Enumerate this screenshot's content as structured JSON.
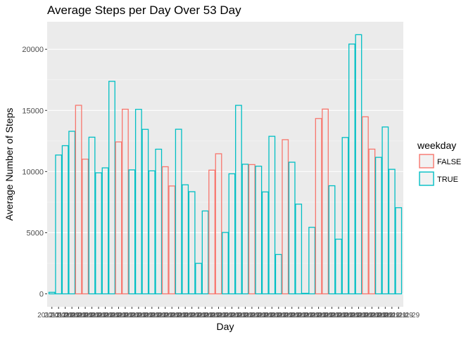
{
  "chart_data": {
    "type": "bar",
    "title": "Average Steps per Day Over 53 Day",
    "xlabel": "Day",
    "ylabel": "Average Number of Steps",
    "ylim": [
      -1060,
      22250
    ],
    "yticks": [
      0,
      5000,
      10000,
      15000,
      20000
    ],
    "ytick_labels": [
      "0",
      "5000",
      "10000",
      "15000",
      "20000"
    ],
    "grid": true,
    "bar_fill": "unfilled",
    "legend": {
      "title": "weekday",
      "placement": "right",
      "entries": [
        {
          "name": "FALSE",
          "color": "#F8766D"
        },
        {
          "name": "TRUE",
          "color": "#00BFC4"
        }
      ]
    },
    "series": [
      {
        "name": "FALSE",
        "color": "#F8766D"
      },
      {
        "name": "TRUE",
        "color": "#00BFC4"
      }
    ],
    "x_tick_labels_overlapping": [
      "201",
      "2012",
      "20121",
      "201210",
      "2012-1",
      "2012-11",
      "2012-11-29"
    ],
    "bars": [
      {
        "group": "TRUE",
        "value": 126
      },
      {
        "group": "TRUE",
        "value": 11352
      },
      {
        "group": "TRUE",
        "value": 12116
      },
      {
        "group": "TRUE",
        "value": 13294
      },
      {
        "group": "FALSE",
        "value": 15420
      },
      {
        "group": "FALSE",
        "value": 11015
      },
      {
        "group": "TRUE",
        "value": 12811
      },
      {
        "group": "TRUE",
        "value": 9900
      },
      {
        "group": "TRUE",
        "value": 10304
      },
      {
        "group": "TRUE",
        "value": 17382
      },
      {
        "group": "FALSE",
        "value": 12426
      },
      {
        "group": "FALSE",
        "value": 15098
      },
      {
        "group": "TRUE",
        "value": 10139
      },
      {
        "group": "TRUE",
        "value": 15084
      },
      {
        "group": "TRUE",
        "value": 13452
      },
      {
        "group": "TRUE",
        "value": 10056
      },
      {
        "group": "TRUE",
        "value": 11829
      },
      {
        "group": "FALSE",
        "value": 10395
      },
      {
        "group": "FALSE",
        "value": 8821
      },
      {
        "group": "TRUE",
        "value": 13460
      },
      {
        "group": "TRUE",
        "value": 8918
      },
      {
        "group": "TRUE",
        "value": 8355
      },
      {
        "group": "TRUE",
        "value": 2492
      },
      {
        "group": "TRUE",
        "value": 6778
      },
      {
        "group": "FALSE",
        "value": 10119
      },
      {
        "group": "FALSE",
        "value": 11458
      },
      {
        "group": "TRUE",
        "value": 5018
      },
      {
        "group": "TRUE",
        "value": 9819
      },
      {
        "group": "TRUE",
        "value": 15414
      },
      {
        "group": "TRUE",
        "value": 10600
      },
      {
        "group": "FALSE",
        "value": 10571
      },
      {
        "group": "TRUE",
        "value": 10439
      },
      {
        "group": "TRUE",
        "value": 8334
      },
      {
        "group": "TRUE",
        "value": 12883
      },
      {
        "group": "TRUE",
        "value": 3219
      },
      {
        "group": "FALSE",
        "value": 12608
      },
      {
        "group": "TRUE",
        "value": 10765
      },
      {
        "group": "TRUE",
        "value": 7336
      },
      {
        "group": "TRUE",
        "value": 41
      },
      {
        "group": "TRUE",
        "value": 5441
      },
      {
        "group": "FALSE",
        "value": 14339
      },
      {
        "group": "FALSE",
        "value": 15110
      },
      {
        "group": "TRUE",
        "value": 8841
      },
      {
        "group": "TRUE",
        "value": 4472
      },
      {
        "group": "TRUE",
        "value": 12787
      },
      {
        "group": "TRUE",
        "value": 20427
      },
      {
        "group": "TRUE",
        "value": 21194
      },
      {
        "group": "FALSE",
        "value": 14478
      },
      {
        "group": "FALSE",
        "value": 11834
      },
      {
        "group": "TRUE",
        "value": 11162
      },
      {
        "group": "TRUE",
        "value": 13646
      },
      {
        "group": "TRUE",
        "value": 10183
      },
      {
        "group": "TRUE",
        "value": 7047
      }
    ]
  }
}
